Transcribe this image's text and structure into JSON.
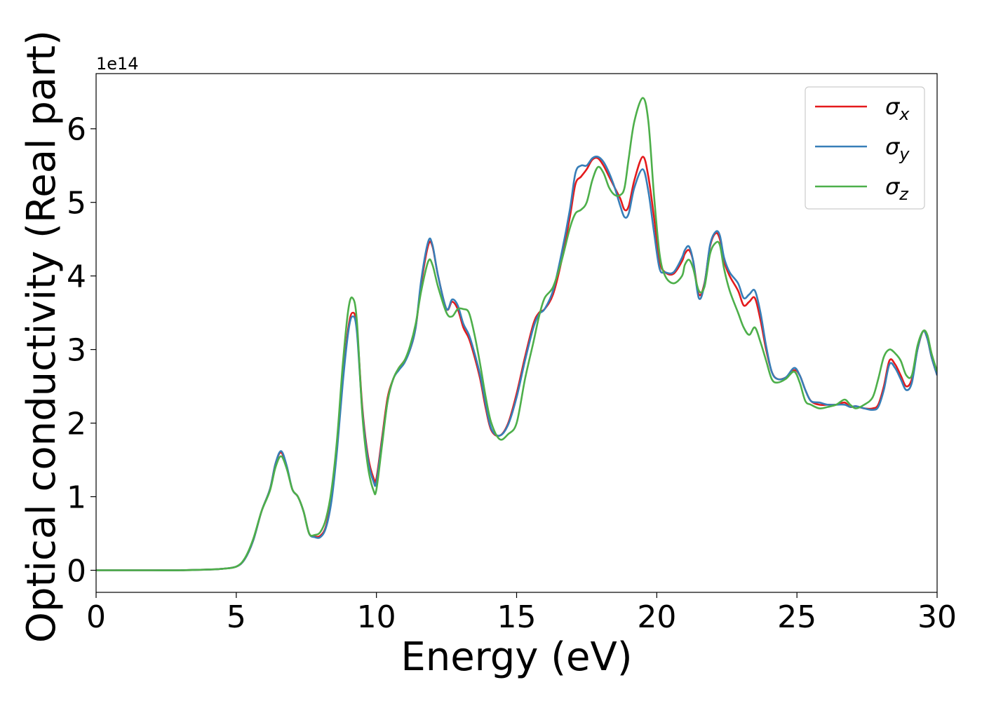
{
  "chart_data": {
    "type": "line",
    "title": "",
    "xlabel": "Energy (eV)",
    "ylabel": "Optical conductivity (Real part)",
    "y_offset_label": "1e14",
    "y_multiplier": 100000000000000.0,
    "xlim": [
      0,
      30
    ],
    "ylim": [
      -0.3,
      6.75
    ],
    "xticks": [
      0,
      5,
      10,
      15,
      20,
      25,
      30
    ],
    "xtick_labels": [
      "0",
      "5",
      "10",
      "15",
      "20",
      "25",
      "30"
    ],
    "yticks": [
      0,
      1,
      2,
      3,
      4,
      5,
      6
    ],
    "ytick_labels": [
      "0",
      "1",
      "2",
      "3",
      "4",
      "5",
      "6"
    ],
    "grid": false,
    "legend_position": "top-right",
    "x": [
      0,
      1,
      2,
      3,
      4,
      4.5,
      5,
      5.3,
      5.6,
      5.9,
      6.2,
      6.4,
      6.6,
      6.8,
      7.0,
      7.2,
      7.4,
      7.6,
      7.8,
      8.0,
      8.2,
      8.4,
      8.6,
      8.8,
      9.0,
      9.15,
      9.3,
      9.5,
      9.7,
      9.9,
      10.0,
      10.2,
      10.4,
      10.6,
      10.8,
      11.0,
      11.2,
      11.4,
      11.6,
      11.85,
      12.0,
      12.2,
      12.5,
      12.7,
      12.9,
      13.1,
      13.3,
      13.5,
      13.7,
      13.9,
      14.1,
      14.4,
      14.7,
      15.0,
      15.3,
      15.6,
      15.8,
      16.0,
      16.3,
      16.6,
      16.9,
      17.1,
      17.3,
      17.5,
      17.7,
      17.9,
      18.1,
      18.3,
      18.5,
      18.7,
      18.85,
      19.0,
      19.2,
      19.5,
      19.7,
      19.9,
      20.1,
      20.3,
      20.6,
      20.9,
      21.0,
      21.15,
      21.3,
      21.5,
      21.7,
      21.9,
      22.1,
      22.25,
      22.4,
      22.6,
      22.9,
      23.1,
      23.3,
      23.5,
      23.7,
      23.9,
      24.1,
      24.3,
      24.6,
      24.9,
      25.1,
      25.3,
      25.5,
      25.8,
      26.1,
      26.4,
      26.7,
      26.9,
      27.1,
      27.4,
      27.7,
      27.9,
      28.1,
      28.3,
      28.5,
      28.7,
      28.9,
      29.1,
      29.3,
      29.5,
      29.65,
      29.8,
      30.0
    ],
    "series": [
      {
        "name": "σx",
        "color": "#e41a1c",
        "values": [
          0,
          0,
          0,
          0,
          0.01,
          0.02,
          0.05,
          0.15,
          0.4,
          0.8,
          1.1,
          1.45,
          1.6,
          1.4,
          1.1,
          1.0,
          0.8,
          0.5,
          0.46,
          0.47,
          0.6,
          1.0,
          1.7,
          2.6,
          3.3,
          3.5,
          3.3,
          2.2,
          1.55,
          1.25,
          1.25,
          1.8,
          2.35,
          2.6,
          2.75,
          2.85,
          3.0,
          3.3,
          3.9,
          4.42,
          4.4,
          4.0,
          3.55,
          3.65,
          3.55,
          3.3,
          3.15,
          2.9,
          2.6,
          2.2,
          1.9,
          1.83,
          2.0,
          2.4,
          2.9,
          3.35,
          3.5,
          3.55,
          3.75,
          4.2,
          4.8,
          5.25,
          5.35,
          5.45,
          5.58,
          5.6,
          5.5,
          5.35,
          5.2,
          5.05,
          4.9,
          4.95,
          5.3,
          5.62,
          5.35,
          4.8,
          4.2,
          4.05,
          4.03,
          4.2,
          4.3,
          4.35,
          4.2,
          3.75,
          3.9,
          4.4,
          4.58,
          4.5,
          4.2,
          4.0,
          3.8,
          3.6,
          3.65,
          3.7,
          3.4,
          3.0,
          2.7,
          2.6,
          2.62,
          2.72,
          2.65,
          2.45,
          2.3,
          2.25,
          2.25,
          2.25,
          2.28,
          2.22,
          2.23,
          2.2,
          2.2,
          2.25,
          2.5,
          2.85,
          2.8,
          2.65,
          2.5,
          2.6,
          3.0,
          3.25,
          3.15,
          2.9,
          2.65
        ]
      },
      {
        "name": "σy",
        "color": "#377eb8",
        "values": [
          0,
          0,
          0,
          0,
          0.01,
          0.02,
          0.05,
          0.15,
          0.4,
          0.8,
          1.1,
          1.45,
          1.62,
          1.42,
          1.1,
          1.0,
          0.8,
          0.5,
          0.45,
          0.45,
          0.58,
          0.95,
          1.65,
          2.55,
          3.25,
          3.45,
          3.25,
          2.15,
          1.5,
          1.2,
          1.2,
          1.75,
          2.3,
          2.6,
          2.72,
          2.82,
          3.0,
          3.3,
          3.95,
          4.47,
          4.42,
          4.0,
          3.55,
          3.68,
          3.6,
          3.35,
          3.2,
          2.95,
          2.65,
          2.25,
          1.92,
          1.83,
          1.98,
          2.35,
          2.85,
          3.3,
          3.48,
          3.55,
          3.8,
          4.3,
          4.9,
          5.4,
          5.5,
          5.5,
          5.6,
          5.62,
          5.55,
          5.4,
          5.2,
          4.95,
          4.8,
          4.85,
          5.2,
          5.45,
          5.15,
          4.6,
          4.1,
          4.05,
          4.05,
          4.25,
          4.35,
          4.4,
          4.2,
          3.7,
          3.88,
          4.42,
          4.6,
          4.55,
          4.25,
          4.05,
          3.9,
          3.7,
          3.75,
          3.8,
          3.5,
          3.05,
          2.7,
          2.6,
          2.62,
          2.75,
          2.65,
          2.45,
          2.3,
          2.28,
          2.25,
          2.25,
          2.25,
          2.22,
          2.23,
          2.2,
          2.18,
          2.22,
          2.45,
          2.8,
          2.75,
          2.6,
          2.45,
          2.55,
          3.0,
          3.25,
          3.15,
          2.9,
          2.65
        ]
      },
      {
        "name": "σz",
        "color": "#4daf4a",
        "values": [
          0,
          0,
          0,
          0,
          0.01,
          0.02,
          0.05,
          0.16,
          0.42,
          0.8,
          1.08,
          1.4,
          1.55,
          1.38,
          1.1,
          1.0,
          0.8,
          0.5,
          0.48,
          0.52,
          0.7,
          1.1,
          1.8,
          2.8,
          3.55,
          3.7,
          3.4,
          2.1,
          1.4,
          1.08,
          1.1,
          1.7,
          2.3,
          2.6,
          2.75,
          2.85,
          3.05,
          3.35,
          3.8,
          4.2,
          4.15,
          3.85,
          3.5,
          3.45,
          3.55,
          3.55,
          3.5,
          3.2,
          2.8,
          2.35,
          2.0,
          1.78,
          1.85,
          2.0,
          2.6,
          3.1,
          3.45,
          3.7,
          3.85,
          4.2,
          4.65,
          4.85,
          4.9,
          5.0,
          5.3,
          5.48,
          5.4,
          5.2,
          5.1,
          5.1,
          5.2,
          5.6,
          6.1,
          6.42,
          6.1,
          5.1,
          4.3,
          4.0,
          3.9,
          4.0,
          4.15,
          4.22,
          4.1,
          3.8,
          3.85,
          4.3,
          4.45,
          4.42,
          4.1,
          3.8,
          3.5,
          3.3,
          3.2,
          3.3,
          3.1,
          2.85,
          2.6,
          2.55,
          2.6,
          2.7,
          2.55,
          2.3,
          2.25,
          2.2,
          2.22,
          2.25,
          2.32,
          2.25,
          2.2,
          2.25,
          2.35,
          2.6,
          2.9,
          3.0,
          2.95,
          2.85,
          2.65,
          2.65,
          3.05,
          3.25,
          3.2,
          2.95,
          2.7
        ]
      }
    ]
  }
}
